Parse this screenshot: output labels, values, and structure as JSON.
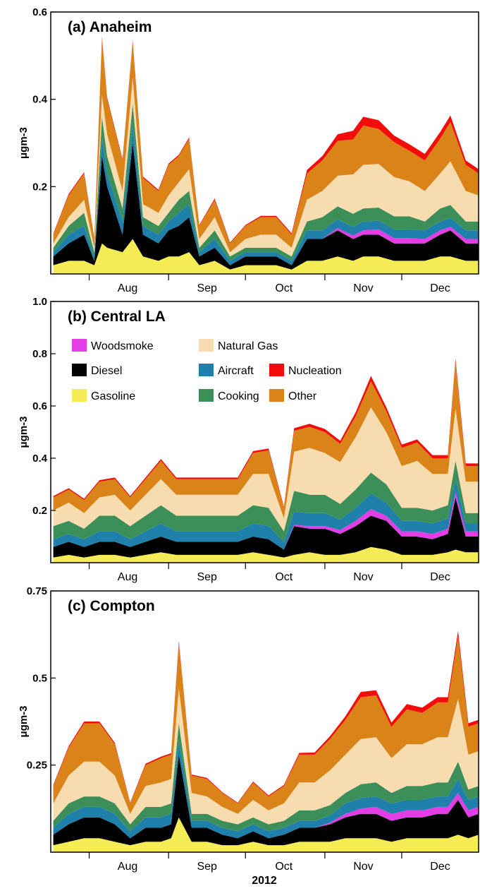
{
  "figure": {
    "xlabel": "2012"
  },
  "legend": {
    "order": [
      "Woodsmoke",
      "Natural Gas",
      "Diesel",
      "Aircraft",
      "Nucleation",
      "Gasoline",
      "Cooking",
      "Other"
    ]
  },
  "colors": {
    "Gasoline": "#f5ec55",
    "Diesel": "#000000",
    "Woodsmoke": "#e33ee5",
    "Aircraft": "#1f80ac",
    "Cooking": "#3d8f5a",
    "Natural Gas": "#f7dcb0",
    "Other": "#d98319",
    "Nucleation": "#f20c0c"
  },
  "chart_data": [
    {
      "type": "area",
      "title": "(a) Anaheim",
      "ylabel": "μgm-3",
      "ylim": [
        0,
        0.6
      ],
      "yticks": [
        0.2,
        0.4,
        0.6
      ],
      "ytick_labels": [
        "0.2",
        "0.4",
        "0.6"
      ],
      "xlim": [
        "2012-07-17",
        "2012-12-31"
      ],
      "month_labels": [
        "Aug",
        "Sep",
        "Oct",
        "Nov",
        "Dec"
      ],
      "x": [
        "2012-07-18",
        "2012-07-24",
        "2012-07-30",
        "2012-08-03",
        "2012-08-06",
        "2012-08-08",
        "2012-08-14",
        "2012-08-18",
        "2012-08-22",
        "2012-08-28",
        "2012-09-01",
        "2012-09-05",
        "2012-09-09",
        "2012-09-13",
        "2012-09-19",
        "2012-09-25",
        "2012-10-01",
        "2012-10-07",
        "2012-10-13",
        "2012-10-19",
        "2012-10-25",
        "2012-10-31",
        "2012-11-06",
        "2012-11-12",
        "2012-11-16",
        "2012-11-22",
        "2012-11-28",
        "2012-12-04",
        "2012-12-10",
        "2012-12-16",
        "2012-12-20",
        "2012-12-26",
        "2012-12-31"
      ],
      "series": [
        {
          "name": "Gasoline",
          "values": [
            0.02,
            0.03,
            0.03,
            0.02,
            0.07,
            0.06,
            0.05,
            0.08,
            0.04,
            0.03,
            0.04,
            0.04,
            0.05,
            0.02,
            0.03,
            0.01,
            0.02,
            0.02,
            0.02,
            0.01,
            0.03,
            0.03,
            0.04,
            0.03,
            0.04,
            0.04,
            0.03,
            0.03,
            0.03,
            0.04,
            0.04,
            0.03,
            0.03
          ]
        },
        {
          "name": "Diesel",
          "values": [
            0.02,
            0.04,
            0.06,
            0.01,
            0.2,
            0.14,
            0.04,
            0.22,
            0.05,
            0.04,
            0.06,
            0.07,
            0.08,
            0.02,
            0.03,
            0.01,
            0.02,
            0.02,
            0.02,
            0.01,
            0.05,
            0.05,
            0.06,
            0.05,
            0.05,
            0.05,
            0.04,
            0.04,
            0.04,
            0.05,
            0.06,
            0.04,
            0.04
          ]
        },
        {
          "name": "Woodsmoke",
          "values": [
            0,
            0,
            0,
            0,
            0,
            0,
            0,
            0,
            0,
            0,
            0,
            0,
            0,
            0,
            0,
            0,
            0,
            0,
            0,
            0,
            0,
            0,
            0.005,
            0.008,
            0.01,
            0.012,
            0.012,
            0.012,
            0.01,
            0.01,
            0.008,
            0.01,
            0.01
          ]
        },
        {
          "name": "Aircraft",
          "values": [
            0.01,
            0.02,
            0.02,
            0.01,
            0.04,
            0.03,
            0.03,
            0.04,
            0.02,
            0.02,
            0.02,
            0.03,
            0.03,
            0.01,
            0.02,
            0.01,
            0.01,
            0.01,
            0.01,
            0.01,
            0.02,
            0.02,
            0.02,
            0.02,
            0.02,
            0.02,
            0.02,
            0.02,
            0.02,
            0.02,
            0.02,
            0.02,
            0.02
          ]
        },
        {
          "name": "Cooking",
          "values": [
            0.01,
            0.02,
            0.03,
            0.01,
            0.05,
            0.04,
            0.03,
            0.05,
            0.02,
            0.02,
            0.02,
            0.03,
            0.03,
            0.01,
            0.02,
            0.01,
            0.01,
            0.01,
            0.01,
            0.01,
            0.02,
            0.03,
            0.03,
            0.03,
            0.03,
            0.03,
            0.03,
            0.03,
            0.02,
            0.03,
            0.03,
            0.02,
            0.02
          ]
        },
        {
          "name": "Natural Gas",
          "values": [
            0.01,
            0.02,
            0.03,
            0.01,
            0.05,
            0.05,
            0.04,
            0.06,
            0.03,
            0.03,
            0.04,
            0.04,
            0.05,
            0.02,
            0.03,
            0.01,
            0.02,
            0.03,
            0.03,
            0.02,
            0.05,
            0.06,
            0.07,
            0.09,
            0.1,
            0.1,
            0.09,
            0.08,
            0.07,
            0.08,
            0.1,
            0.07,
            0.06
          ]
        },
        {
          "name": "Other",
          "values": [
            0.02,
            0.05,
            0.06,
            0.02,
            0.13,
            0.08,
            0.07,
            0.08,
            0.06,
            0.05,
            0.07,
            0.06,
            0.07,
            0.03,
            0.04,
            0.02,
            0.03,
            0.04,
            0.04,
            0.03,
            0.06,
            0.07,
            0.08,
            0.08,
            0.09,
            0.08,
            0.08,
            0.07,
            0.07,
            0.08,
            0.09,
            0.06,
            0.05
          ]
        },
        {
          "name": "Nucleation",
          "values": [
            0.002,
            0.003,
            0.003,
            0.002,
            0.004,
            0.004,
            0.003,
            0.004,
            0.003,
            0.003,
            0.003,
            0.003,
            0.003,
            0.002,
            0.003,
            0.002,
            0.002,
            0.003,
            0.003,
            0.003,
            0.008,
            0.01,
            0.015,
            0.02,
            0.02,
            0.02,
            0.015,
            0.015,
            0.015,
            0.015,
            0.015,
            0.01,
            0.01
          ]
        }
      ]
    },
    {
      "type": "area",
      "title": "(b) Central LA",
      "ylabel": "μgm-3",
      "ylim": [
        0,
        1.0
      ],
      "yticks": [
        0.2,
        0.4,
        0.6,
        0.8,
        1.0
      ],
      "ytick_labels": [
        "0.2",
        "0.4",
        "0.6",
        "0.8",
        "1.0"
      ],
      "xlim": [
        "2012-07-17",
        "2012-12-31"
      ],
      "month_labels": [
        "Aug",
        "Sep",
        "Oct",
        "Nov",
        "Dec"
      ],
      "x": [
        "2012-07-18",
        "2012-07-24",
        "2012-07-30",
        "2012-08-05",
        "2012-08-11",
        "2012-08-17",
        "2012-08-23",
        "2012-08-29",
        "2012-09-04",
        "2012-09-10",
        "2012-09-16",
        "2012-09-22",
        "2012-09-28",
        "2012-10-04",
        "2012-10-10",
        "2012-10-16",
        "2012-10-20",
        "2012-10-26",
        "2012-11-01",
        "2012-11-07",
        "2012-11-13",
        "2012-11-19",
        "2012-11-25",
        "2012-12-01",
        "2012-12-07",
        "2012-12-13",
        "2012-12-19",
        "2012-12-22",
        "2012-12-26",
        "2012-12-31"
      ],
      "series": [
        {
          "name": "Gasoline",
          "values": [
            0.02,
            0.03,
            0.02,
            0.03,
            0.03,
            0.02,
            0.03,
            0.04,
            0.03,
            0.03,
            0.03,
            0.03,
            0.03,
            0.04,
            0.03,
            0.02,
            0.03,
            0.04,
            0.03,
            0.03,
            0.04,
            0.06,
            0.05,
            0.03,
            0.03,
            0.03,
            0.04,
            0.05,
            0.04,
            0.04
          ]
        },
        {
          "name": "Diesel",
          "values": [
            0.04,
            0.05,
            0.04,
            0.05,
            0.05,
            0.04,
            0.05,
            0.06,
            0.05,
            0.05,
            0.05,
            0.05,
            0.05,
            0.06,
            0.06,
            0.03,
            0.11,
            0.09,
            0.1,
            0.08,
            0.1,
            0.12,
            0.11,
            0.07,
            0.07,
            0.06,
            0.07,
            0.2,
            0.06,
            0.06
          ]
        },
        {
          "name": "Woodsmoke",
          "values": [
            0,
            0,
            0,
            0,
            0,
            0,
            0,
            0,
            0,
            0,
            0,
            0,
            0,
            0,
            0,
            0,
            0.005,
            0.01,
            0.01,
            0.015,
            0.02,
            0.025,
            0.02,
            0.02,
            0.02,
            0.02,
            0.02,
            0.02,
            0.02,
            0.02
          ]
        },
        {
          "name": "Aircraft",
          "values": [
            0.03,
            0.03,
            0.03,
            0.04,
            0.04,
            0.03,
            0.04,
            0.05,
            0.04,
            0.04,
            0.04,
            0.04,
            0.04,
            0.05,
            0.05,
            0.03,
            0.05,
            0.05,
            0.05,
            0.04,
            0.05,
            0.06,
            0.05,
            0.04,
            0.04,
            0.04,
            0.04,
            0.05,
            0.03,
            0.03
          ]
        },
        {
          "name": "Cooking",
          "values": [
            0.05,
            0.05,
            0.04,
            0.06,
            0.06,
            0.05,
            0.06,
            0.07,
            0.06,
            0.06,
            0.06,
            0.06,
            0.06,
            0.07,
            0.07,
            0.04,
            0.08,
            0.07,
            0.07,
            0.06,
            0.07,
            0.08,
            0.07,
            0.05,
            0.05,
            0.05,
            0.05,
            0.07,
            0.04,
            0.04
          ]
        },
        {
          "name": "Natural Gas",
          "values": [
            0.06,
            0.07,
            0.06,
            0.07,
            0.08,
            0.06,
            0.08,
            0.1,
            0.08,
            0.08,
            0.08,
            0.08,
            0.08,
            0.12,
            0.13,
            0.05,
            0.15,
            0.18,
            0.16,
            0.16,
            0.2,
            0.25,
            0.2,
            0.16,
            0.18,
            0.14,
            0.12,
            0.2,
            0.12,
            0.12
          ]
        },
        {
          "name": "Other",
          "values": [
            0.05,
            0.05,
            0.05,
            0.06,
            0.06,
            0.05,
            0.06,
            0.07,
            0.06,
            0.06,
            0.06,
            0.06,
            0.06,
            0.08,
            0.09,
            0.04,
            0.08,
            0.08,
            0.08,
            0.07,
            0.08,
            0.1,
            0.08,
            0.07,
            0.07,
            0.06,
            0.06,
            0.18,
            0.06,
            0.06
          ]
        },
        {
          "name": "Nucleation",
          "values": [
            0.005,
            0.005,
            0.005,
            0.006,
            0.006,
            0.005,
            0.006,
            0.007,
            0.006,
            0.006,
            0.006,
            0.006,
            0.006,
            0.007,
            0.007,
            0.004,
            0.01,
            0.012,
            0.012,
            0.012,
            0.015,
            0.02,
            0.015,
            0.012,
            0.012,
            0.012,
            0.012,
            0.01,
            0.01,
            0.01
          ]
        }
      ]
    },
    {
      "type": "area",
      "title": "(c) Compton",
      "ylabel": "μgm-3",
      "ylim": [
        0,
        0.75
      ],
      "yticks": [
        0.25,
        0.5,
        0.75
      ],
      "ytick_labels": [
        "0.25",
        "0.5",
        "0.75"
      ],
      "xlim": [
        "2012-07-17",
        "2012-12-31"
      ],
      "month_labels": [
        "Aug",
        "Sep",
        "Oct",
        "Nov",
        "Dec"
      ],
      "x": [
        "2012-07-18",
        "2012-07-24",
        "2012-07-30",
        "2012-08-05",
        "2012-08-11",
        "2012-08-17",
        "2012-08-23",
        "2012-08-29",
        "2012-09-02",
        "2012-09-05",
        "2012-09-10",
        "2012-09-16",
        "2012-09-22",
        "2012-09-28",
        "2012-10-04",
        "2012-10-10",
        "2012-10-16",
        "2012-10-22",
        "2012-10-28",
        "2012-11-03",
        "2012-11-09",
        "2012-11-15",
        "2012-11-21",
        "2012-11-27",
        "2012-12-03",
        "2012-12-09",
        "2012-12-15",
        "2012-12-19",
        "2012-12-23",
        "2012-12-27",
        "2012-12-31"
      ],
      "series": [
        {
          "name": "Gasoline",
          "values": [
            0.02,
            0.03,
            0.04,
            0.04,
            0.03,
            0.02,
            0.03,
            0.03,
            0.04,
            0.1,
            0.03,
            0.03,
            0.02,
            0.02,
            0.03,
            0.02,
            0.02,
            0.03,
            0.03,
            0.03,
            0.04,
            0.04,
            0.04,
            0.03,
            0.04,
            0.04,
            0.04,
            0.04,
            0.05,
            0.04,
            0.05
          ]
        },
        {
          "name": "Diesel",
          "values": [
            0.03,
            0.05,
            0.06,
            0.06,
            0.05,
            0.02,
            0.04,
            0.04,
            0.04,
            0.18,
            0.04,
            0.04,
            0.03,
            0.02,
            0.03,
            0.02,
            0.03,
            0.04,
            0.04,
            0.05,
            0.06,
            0.07,
            0.07,
            0.06,
            0.06,
            0.06,
            0.07,
            0.07,
            0.1,
            0.06,
            0.06
          ]
        },
        {
          "name": "Woodsmoke",
          "values": [
            0,
            0,
            0,
            0,
            0,
            0,
            0,
            0,
            0,
            0,
            0,
            0,
            0,
            0,
            0,
            0,
            0,
            0,
            0,
            0.005,
            0.01,
            0.015,
            0.02,
            0.02,
            0.02,
            0.02,
            0.02,
            0.02,
            0.02,
            0.02,
            0.02
          ]
        },
        {
          "name": "Aircraft",
          "values": [
            0.02,
            0.03,
            0.03,
            0.03,
            0.03,
            0.02,
            0.03,
            0.03,
            0.03,
            0.04,
            0.02,
            0.02,
            0.02,
            0.02,
            0.02,
            0.02,
            0.02,
            0.02,
            0.02,
            0.02,
            0.03,
            0.03,
            0.03,
            0.03,
            0.03,
            0.03,
            0.03,
            0.03,
            0.04,
            0.03,
            0.03
          ]
        },
        {
          "name": "Cooking",
          "values": [
            0.02,
            0.03,
            0.03,
            0.03,
            0.03,
            0.02,
            0.03,
            0.03,
            0.03,
            0.05,
            0.02,
            0.02,
            0.02,
            0.02,
            0.02,
            0.02,
            0.02,
            0.03,
            0.03,
            0.03,
            0.03,
            0.04,
            0.04,
            0.03,
            0.04,
            0.04,
            0.04,
            0.04,
            0.05,
            0.03,
            0.03
          ]
        },
        {
          "name": "Natural Gas",
          "values": [
            0.05,
            0.08,
            0.1,
            0.1,
            0.08,
            0.03,
            0.06,
            0.07,
            0.07,
            0.1,
            0.06,
            0.05,
            0.04,
            0.03,
            0.05,
            0.04,
            0.05,
            0.08,
            0.08,
            0.1,
            0.11,
            0.13,
            0.13,
            0.1,
            0.12,
            0.12,
            0.13,
            0.13,
            0.18,
            0.1,
            0.1
          ]
        },
        {
          "name": "Other",
          "values": [
            0.05,
            0.08,
            0.11,
            0.11,
            0.09,
            0.03,
            0.06,
            0.07,
            0.07,
            0.13,
            0.05,
            0.05,
            0.04,
            0.03,
            0.05,
            0.04,
            0.05,
            0.08,
            0.08,
            0.09,
            0.1,
            0.12,
            0.12,
            0.09,
            0.1,
            0.09,
            0.1,
            0.1,
            0.18,
            0.08,
            0.08
          ]
        },
        {
          "name": "Nucleation",
          "values": [
            0.003,
            0.004,
            0.005,
            0.005,
            0.004,
            0.002,
            0.004,
            0.004,
            0.004,
            0.006,
            0.003,
            0.003,
            0.002,
            0.002,
            0.003,
            0.003,
            0.003,
            0.005,
            0.006,
            0.008,
            0.01,
            0.015,
            0.015,
            0.012,
            0.015,
            0.015,
            0.015,
            0.015,
            0.015,
            0.01,
            0.01
          ]
        }
      ]
    }
  ]
}
